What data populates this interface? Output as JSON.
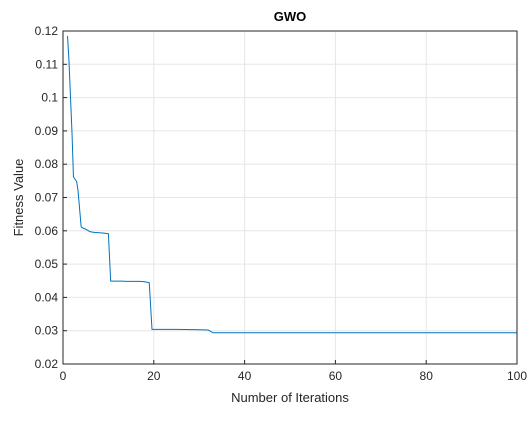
{
  "chart_data": {
    "type": "line",
    "title": "GWO",
    "xlabel": "Number of Iterations",
    "ylabel": "Fitness Value",
    "xlim": [
      0,
      100
    ],
    "ylim": [
      0.02,
      0.12
    ],
    "grid": true,
    "x_ticks": [
      0,
      20,
      40,
      60,
      80,
      100
    ],
    "y_ticks": [
      0.02,
      0.03,
      0.04,
      0.05,
      0.06,
      0.07,
      0.08,
      0.09,
      0.1,
      0.11,
      0.12
    ],
    "x_tick_labels": [
      "0",
      "20",
      "40",
      "60",
      "80",
      "100"
    ],
    "y_tick_labels": [
      "0.02",
      "0.03",
      "0.04",
      "0.05",
      "0.06",
      "0.07",
      "0.08",
      "0.09",
      "0.1",
      "0.11",
      "0.12"
    ],
    "series": [
      {
        "color": "#0072BD",
        "x": [
          1,
          1.3,
          2,
          2.3,
          3,
          3.3,
          4,
          4.4,
          5,
          6,
          7,
          8,
          9,
          10,
          10.5,
          11,
          12,
          13,
          14,
          15,
          16,
          17,
          18,
          19,
          19.6,
          20,
          25,
          30,
          32,
          33,
          34,
          40,
          50,
          60,
          70,
          80,
          90,
          100
        ],
        "y": [
          0.1185,
          0.1115,
          0.0888,
          0.0762,
          0.0748,
          0.0722,
          0.0612,
          0.0608,
          0.0605,
          0.0597,
          0.0595,
          0.0594,
          0.0593,
          0.0591,
          0.0449,
          0.0449,
          0.0449,
          0.0449,
          0.0448,
          0.0448,
          0.0448,
          0.0448,
          0.0447,
          0.0444,
          0.0304,
          0.0304,
          0.0304,
          0.0303,
          0.0302,
          0.0294,
          0.0294,
          0.0294,
          0.0294,
          0.0294,
          0.0294,
          0.0294,
          0.0294,
          0.0294
        ]
      }
    ]
  }
}
